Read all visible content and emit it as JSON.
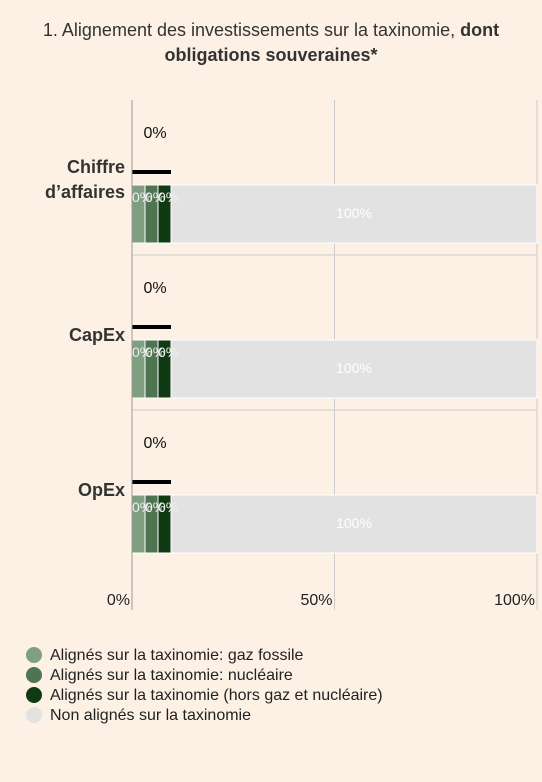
{
  "chart_data": {
    "type": "stacked_barh",
    "title": "1. Alignement des investissements sur la taxinomie,",
    "title_bold": "dont obligations souveraines*",
    "categories": [
      "Chiffre d’affaires",
      "CapEx",
      "OpEx"
    ],
    "series": [
      {
        "name": "Alignés sur la taxinomie: gaz fossile",
        "color": "#7f9f80",
        "values": [
          0,
          0,
          0
        ],
        "value_labels": [
          "0%",
          "0%",
          "0%"
        ]
      },
      {
        "name": "Alignés sur la taxinomie: nucléaire",
        "color": "#4f7451",
        "values": [
          0,
          0,
          0
        ],
        "value_labels": [
          "0%",
          "0%",
          "0%"
        ]
      },
      {
        "name": "Alignés sur la taxinomie (hors gaz et nucléaire)",
        "color": "#0f3a13",
        "values": [
          0,
          0,
          0
        ],
        "value_labels": [
          "0%",
          "0%",
          "0%"
        ]
      },
      {
        "name": "Non alignés sur la taxinomie",
        "color": "#e2e2e2",
        "values": [
          100,
          100,
          100
        ],
        "value_labels": [
          "100%",
          "100%",
          "100%"
        ]
      }
    ],
    "totals": {
      "color": "#000000",
      "values": [
        0,
        0,
        0
      ],
      "value_labels": [
        "0%",
        "0%",
        "0%"
      ]
    },
    "xlim": [
      0,
      100
    ],
    "xticks": [
      {
        "value": 0,
        "label": "0%"
      },
      {
        "value": 50,
        "label": "50%"
      },
      {
        "value": 100,
        "label": "100%"
      }
    ]
  }
}
